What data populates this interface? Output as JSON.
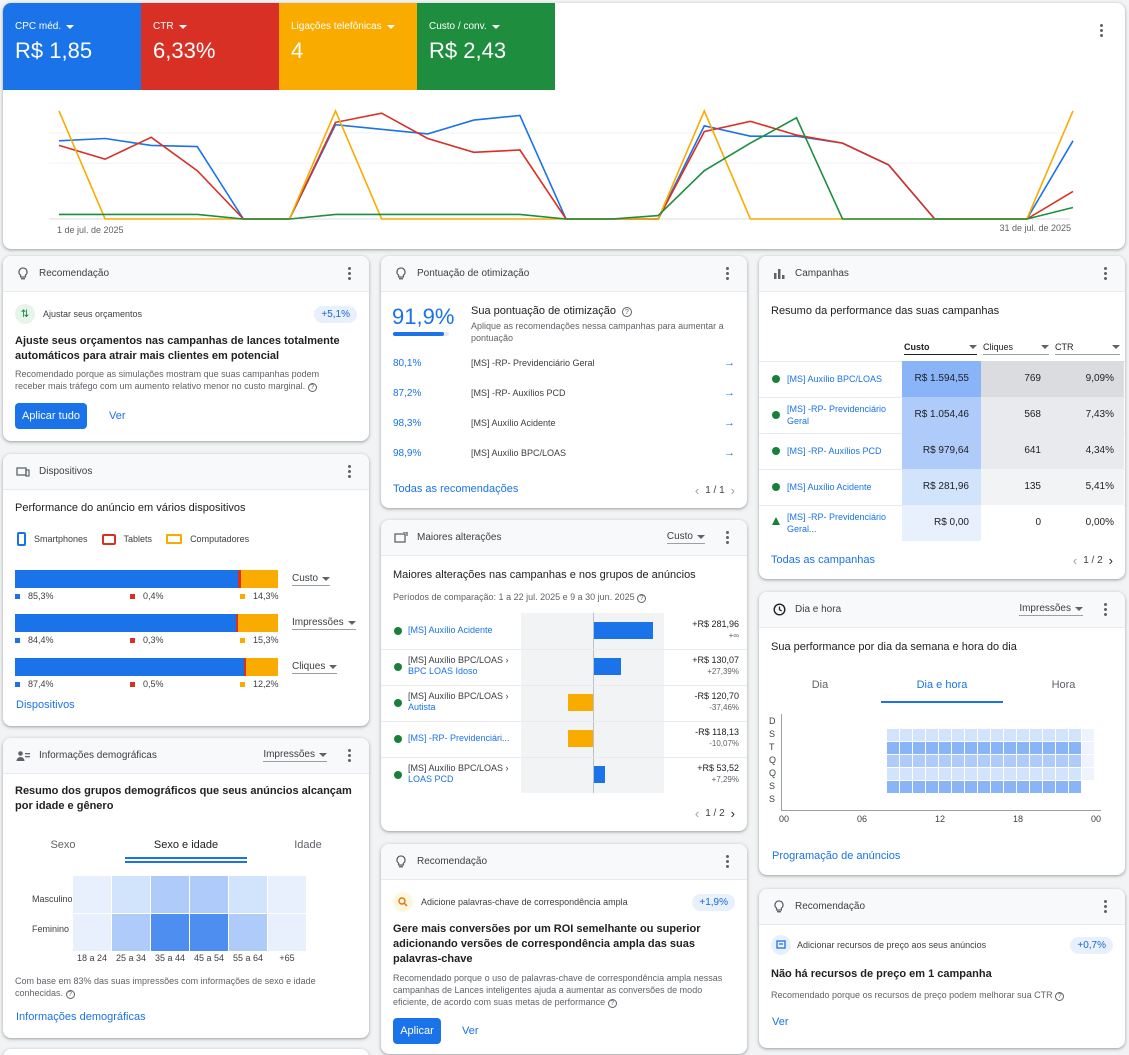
{
  "overview": {
    "metrics": [
      {
        "label": "CPC méd.",
        "value": "R$ 1,85",
        "color": "#1a73e8"
      },
      {
        "label": "CTR",
        "value": "6,33%",
        "color": "#d93025"
      },
      {
        "label": "Ligações telefônicas",
        "value": "4",
        "color": "#f9ab00"
      },
      {
        "label": "Custo / conv.",
        "value": "R$ 2,43",
        "color": "#1e8e3e"
      }
    ],
    "start_date": "1 de jul. de 2025",
    "end_date": "31 de jul. de 2025",
    "chart_data": {
      "type": "line",
      "series": [
        {
          "color": "#1a73e8",
          "values": [
            68,
            70,
            64,
            63,
            0,
            0,
            82,
            78,
            74,
            86,
            90,
            0,
            0,
            0,
            81,
            72,
            72,
            66,
            47,
            0,
            0,
            0,
            68
          ]
        },
        {
          "color": "#d93025",
          "values": [
            64,
            52,
            71,
            42,
            0,
            0,
            84,
            92,
            70,
            58,
            60,
            0,
            0,
            0,
            76,
            85,
            73,
            66,
            47,
            0,
            0,
            0,
            24
          ]
        },
        {
          "color": "#f9ab00",
          "values": [
            94,
            0,
            0,
            0,
            0,
            0,
            94,
            0,
            0,
            0,
            0,
            0,
            0,
            0,
            94,
            0,
            0,
            0,
            0,
            0,
            0,
            0,
            94
          ]
        },
        {
          "color": "#1e8e3e",
          "values": [
            4,
            4,
            4,
            4,
            0,
            0,
            4,
            4,
            4,
            4,
            4,
            0,
            0,
            3,
            42,
            66,
            88,
            0,
            0,
            0,
            0,
            0,
            10
          ]
        }
      ]
    }
  },
  "rec1": {
    "title": "Recomendação",
    "item": "Ajustar seus orçamentos",
    "badge": "+5,1%",
    "headline": "Ajuste seus orçamentos nas campanhas de lances totalmente automáticos para atrair mais clientes em potencial",
    "desc": "Recomendado porque as simulações mostram que suas campanhas podem receber mais tráfego com um aumento relativo menor no custo marginal.",
    "apply": "Aplicar tudo",
    "view": "Ver"
  },
  "devices": {
    "title": "Dispositivos",
    "headline": "Performance do anúncio em vários dispositivos",
    "legend": [
      "Smartphones",
      "Tablets",
      "Computadores"
    ],
    "rows": [
      {
        "label": "Custo",
        "values": [
          85.3,
          0.4,
          14.3
        ],
        "texts": [
          "85,3%",
          "0,4%",
          "14,3%"
        ]
      },
      {
        "label": "Impressões",
        "values": [
          84.4,
          0.3,
          15.3
        ],
        "texts": [
          "84,4%",
          "0,3%",
          "15,3%"
        ]
      },
      {
        "label": "Cliques",
        "values": [
          87.4,
          0.5,
          12.2
        ],
        "texts": [
          "87,4%",
          "0,5%",
          "12,2%"
        ]
      }
    ],
    "link": "Dispositivos"
  },
  "demo": {
    "title": "Informações demográficas",
    "dropdown": "Impressões",
    "headline": "Resumo dos grupos demográficos que seus anúncios alcançam por idade e gênero",
    "tabs": [
      "Sexo",
      "Sexo e idade",
      "Idade"
    ],
    "rows": [
      "Masculino",
      "Feminino"
    ],
    "cols": [
      "18 a 24",
      "25 a 34",
      "35 a 44",
      "45 a 54",
      "55 a 64",
      "+65"
    ],
    "heat": [
      [
        1,
        2,
        3,
        3,
        2,
        1
      ],
      [
        1,
        3,
        5,
        5,
        3,
        1
      ]
    ],
    "note": "Com base em 83% das suas impressões com informações de sexo e idade conhecidas.",
    "link": "Informações demográficas"
  },
  "opt": {
    "title": "Pontuação de otimização",
    "score": "91,9%",
    "score_value": 91.9,
    "heading": "Sua pontuação de otimização",
    "desc": "Aplique as recomendações nessa campanhas para aumentar a pontuação",
    "rows": [
      {
        "pct": "80,1%",
        "name": "[MS] -RP- Previdenciário Geral"
      },
      {
        "pct": "87,2%",
        "name": "[MS] -RP- Auxílios PCD"
      },
      {
        "pct": "98,3%",
        "name": "[MS] Auxílio Acidente"
      },
      {
        "pct": "98,9%",
        "name": "[MS] Auxílio BPC/LOAS"
      }
    ],
    "link": "Todas as recomendações",
    "pager": "1 / 1"
  },
  "changes": {
    "title": "Maiores alterações",
    "dropdown": "Custo",
    "headline": "Maiores alterações nas campanhas e nos grupos de anúncios",
    "period": "Períodos de comparação: 1 a 22 jul. 2025 e 9 a 30 jun. 2025",
    "rows": [
      {
        "line1": "[MS] Auxílio Acidente",
        "line2": "",
        "amount": "+R$ 281,96",
        "pct": "+∞",
        "delta": 281.96
      },
      {
        "line1": "[MS] Auxílio BPC/LOAS ›",
        "line2": "BPC LOAS Idoso",
        "amount": "+R$ 130,07",
        "pct": "+27,39%",
        "delta": 130.07
      },
      {
        "line1": "[MS] Auxílio BPC/LOAS ›",
        "line2": "Autista",
        "amount": "-R$ 120,70",
        "pct": "-37,46%",
        "delta": -120.7
      },
      {
        "line1": "[MS] -RP- Previdenciári...",
        "line2": "",
        "amount": "-R$ 118,13",
        "pct": "-10,07%",
        "delta": -118.13
      },
      {
        "line1": "[MS] Auxílio BPC/LOAS ›",
        "line2": "LOAS PCD",
        "amount": "+R$ 53,52",
        "pct": "+7,29%",
        "delta": 53.52
      }
    ],
    "pager": "1 / 2"
  },
  "rec2": {
    "title": "Recomendação",
    "item": "Adicione palavras-chave de correspondência ampla",
    "badge": "+1,9%",
    "headline": "Gere mais conversões por um ROI semelhante ou superior adicionando versões de correspondência ampla das suas palavras-chave",
    "desc": "Recomendado porque o uso de palavras-chave de correspondência ampla nessas campanhas de Lances inteligentes ajuda a aumentar as conversões de modo eficiente, de acordo com suas metas de performance",
    "apply": "Aplicar",
    "view": "Ver"
  },
  "campaigns": {
    "title": "Campanhas",
    "headline": "Resumo da performance das suas campanhas",
    "cols": [
      "Custo",
      "Cliques",
      "CTR"
    ],
    "rows": [
      {
        "name": "[MS] Auxílio BPC/LOAS",
        "cost": "R$ 1.594,55",
        "clicks": "769",
        "ctr": "9,09%",
        "status": "dot"
      },
      {
        "name": "[MS] -RP- Previdenciário Geral",
        "cost": "R$ 1.054,46",
        "clicks": "568",
        "ctr": "7,43%",
        "status": "dot"
      },
      {
        "name": "[MS] -RP- Auxílios PCD",
        "cost": "R$ 979,64",
        "clicks": "641",
        "ctr": "4,34%",
        "status": "dot"
      },
      {
        "name": "[MS] Auxílio Acidente",
        "cost": "R$ 281,96",
        "clicks": "135",
        "ctr": "5,41%",
        "status": "dot"
      },
      {
        "name": "[MS] -RP- Previdenciário Geral...",
        "cost": "R$ 0,00",
        "clicks": "0",
        "ctr": "0,00%",
        "status": "limited"
      }
    ],
    "link": "Todas as campanhas",
    "pager": "1 / 2"
  },
  "dayhour": {
    "title": "Dia e hora",
    "dropdown": "Impressões",
    "headline": "Sua performance por dia da semana e hora do dia",
    "tabs": [
      "Dia",
      "Dia e hora",
      "Hora"
    ],
    "days": [
      "D",
      "S",
      "T",
      "Q",
      "Q",
      "S",
      "S"
    ],
    "hours": [
      "00",
      "06",
      "12",
      "18",
      "00"
    ],
    "link": "Programação de anúncios"
  },
  "rec3": {
    "title": "Recomendação",
    "item": "Adicionar recursos de preço aos seus anúncios",
    "badge": "+0,7%",
    "headline": "Não há recursos de preço em 1 campanha",
    "desc": "Recomendado porque os recursos de preço podem melhorar sua CTR",
    "view": "Ver"
  }
}
